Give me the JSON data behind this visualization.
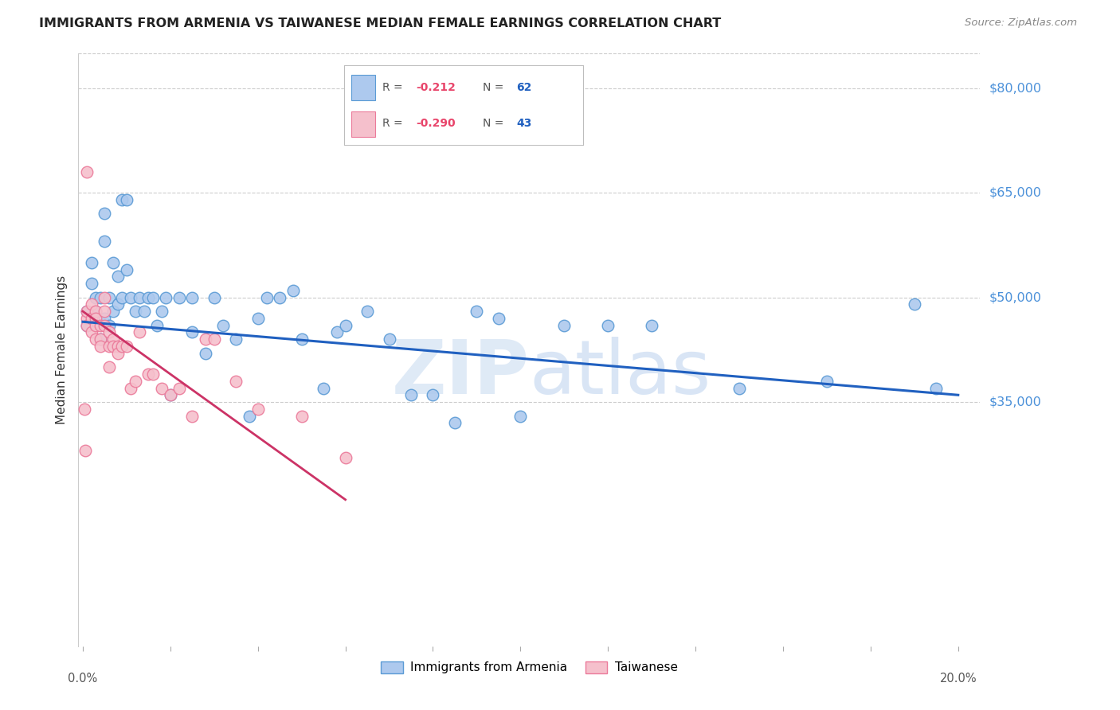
{
  "title": "IMMIGRANTS FROM ARMENIA VS TAIWANESE MEDIAN FEMALE EARNINGS CORRELATION CHART",
  "source": "Source: ZipAtlas.com",
  "ylabel": "Median Female Earnings",
  "y_ticks": [
    35000,
    50000,
    65000,
    80000
  ],
  "y_tick_labels": [
    "$35,000",
    "$50,000",
    "$65,000",
    "$80,000"
  ],
  "y_min": 0,
  "y_max": 85000,
  "x_min": -0.001,
  "x_max": 0.205,
  "watermark_zip": "ZIP",
  "watermark_atlas": "atlas",
  "blue_color": "#5b9bd5",
  "pink_color": "#eb7a9a",
  "blue_line_color": "#2060c0",
  "pink_line_color": "#cc3366",
  "scatter_blue_x": [
    0.001,
    0.001,
    0.002,
    0.002,
    0.003,
    0.003,
    0.004,
    0.004,
    0.005,
    0.005,
    0.005,
    0.006,
    0.006,
    0.007,
    0.007,
    0.008,
    0.008,
    0.009,
    0.009,
    0.01,
    0.01,
    0.011,
    0.012,
    0.013,
    0.014,
    0.015,
    0.016,
    0.017,
    0.018,
    0.019,
    0.02,
    0.022,
    0.025,
    0.025,
    0.028,
    0.03,
    0.032,
    0.035,
    0.038,
    0.04,
    0.042,
    0.045,
    0.048,
    0.05,
    0.055,
    0.058,
    0.06,
    0.065,
    0.07,
    0.075,
    0.08,
    0.085,
    0.09,
    0.095,
    0.1,
    0.11,
    0.12,
    0.13,
    0.15,
    0.17,
    0.19,
    0.195
  ],
  "scatter_blue_y": [
    48000,
    46000,
    55000,
    52000,
    48000,
    50000,
    50000,
    44000,
    62000,
    58000,
    47000,
    50000,
    46000,
    55000,
    48000,
    53000,
    49000,
    64000,
    50000,
    64000,
    54000,
    50000,
    48000,
    50000,
    48000,
    50000,
    50000,
    46000,
    48000,
    50000,
    36000,
    50000,
    50000,
    45000,
    42000,
    50000,
    46000,
    44000,
    33000,
    47000,
    50000,
    50000,
    51000,
    44000,
    37000,
    45000,
    46000,
    48000,
    44000,
    36000,
    36000,
    32000,
    48000,
    47000,
    33000,
    46000,
    46000,
    46000,
    37000,
    38000,
    49000,
    37000
  ],
  "scatter_pink_x": [
    0.0003,
    0.0005,
    0.001,
    0.001,
    0.001,
    0.001,
    0.002,
    0.002,
    0.002,
    0.003,
    0.003,
    0.003,
    0.003,
    0.004,
    0.004,
    0.004,
    0.005,
    0.005,
    0.005,
    0.006,
    0.006,
    0.006,
    0.007,
    0.007,
    0.008,
    0.008,
    0.009,
    0.01,
    0.011,
    0.012,
    0.013,
    0.015,
    0.016,
    0.018,
    0.02,
    0.022,
    0.025,
    0.028,
    0.03,
    0.035,
    0.04,
    0.05,
    0.06
  ],
  "scatter_pink_y": [
    34000,
    28000,
    47000,
    48000,
    46000,
    68000,
    49000,
    47000,
    45000,
    48000,
    47000,
    44000,
    46000,
    46000,
    44000,
    43000,
    50000,
    48000,
    46000,
    45000,
    43000,
    40000,
    44000,
    43000,
    43000,
    42000,
    43000,
    43000,
    37000,
    38000,
    45000,
    39000,
    39000,
    37000,
    36000,
    37000,
    33000,
    44000,
    44000,
    38000,
    34000,
    33000,
    27000
  ],
  "blue_trend_x": [
    0.0,
    0.2
  ],
  "blue_trend_y": [
    46500,
    36000
  ],
  "pink_trend_x": [
    0.0,
    0.06
  ],
  "pink_trend_y": [
    48000,
    21000
  ],
  "grid_color": "#cccccc",
  "bg_color": "#ffffff",
  "r_color": "#e8446a",
  "n_color": "#2060c0",
  "legend_label_color": "#333333"
}
